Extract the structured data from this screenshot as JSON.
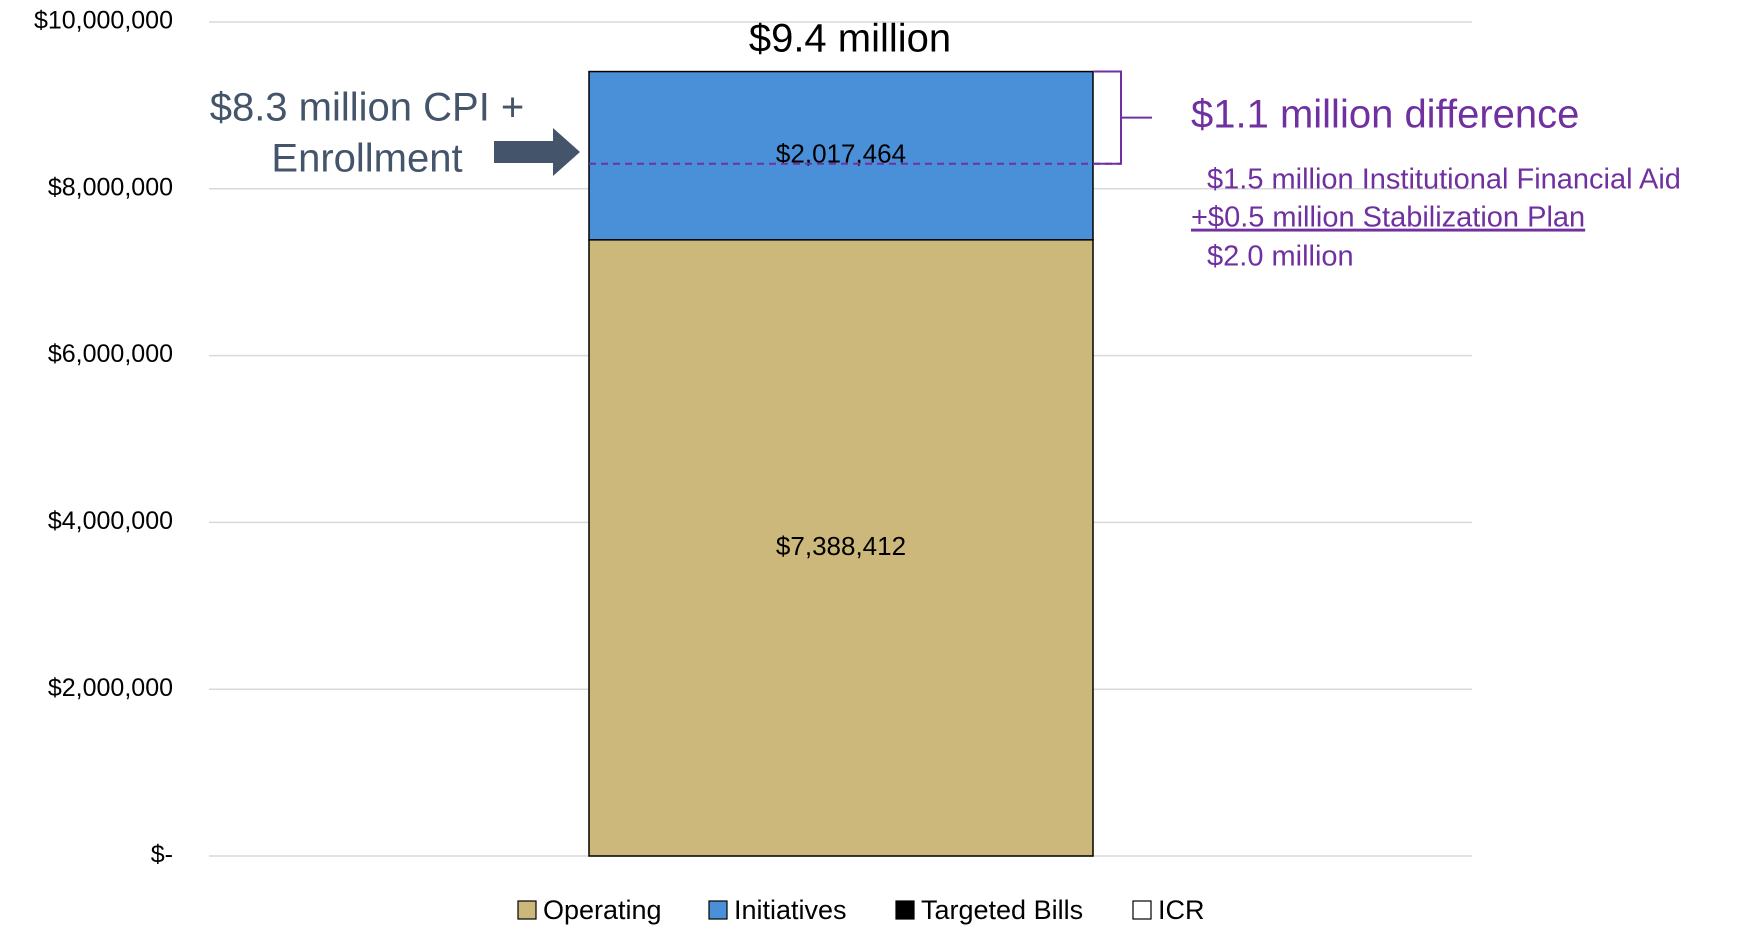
{
  "chart_data": {
    "type": "bar",
    "stacked": true,
    "title": "$9.4 million",
    "categories": [
      null
    ],
    "series": [
      {
        "name": "Operating",
        "color": "#cdb87c",
        "values": [
          7388412
        ],
        "value_labels": [
          "$7,388,412"
        ]
      },
      {
        "name": "Initiatives",
        "color": "#4a90d9",
        "values": [
          2017464
        ],
        "value_labels": [
          "$2,017,464"
        ]
      },
      {
        "name": "Targeted Bills",
        "color": "#000000",
        "values": [
          0
        ]
      },
      {
        "name": "ICR",
        "color": "#ffffff",
        "values": [
          0
        ]
      }
    ],
    "ylim": [
      0,
      10000000
    ],
    "yticks": [
      {
        "value": 0,
        "label": "$-"
      },
      {
        "value": 2000000,
        "label": "$2,000,000"
      },
      {
        "value": 4000000,
        "label": "$4,000,000"
      },
      {
        "value": 6000000,
        "label": "$6,000,000"
      },
      {
        "value": 8000000,
        "label": "$8,000,000"
      },
      {
        "value": 10000000,
        "label": "$10,000,000"
      }
    ],
    "grid": true,
    "legend": "bottom",
    "annotations": {
      "baseline": {
        "lines": [
          "$8.3 million CPI +",
          "Enrollment"
        ],
        "value": 8300000,
        "color": "#44546a",
        "line_color": "#7030a0"
      },
      "difference": {
        "text": "$1.1 million difference",
        "color": "#7030a0",
        "details": [
          "$1.5 million Institutional Financial Aid",
          "+$0.5 million Stabilization Plan",
          "$2.0 million"
        ]
      }
    }
  }
}
